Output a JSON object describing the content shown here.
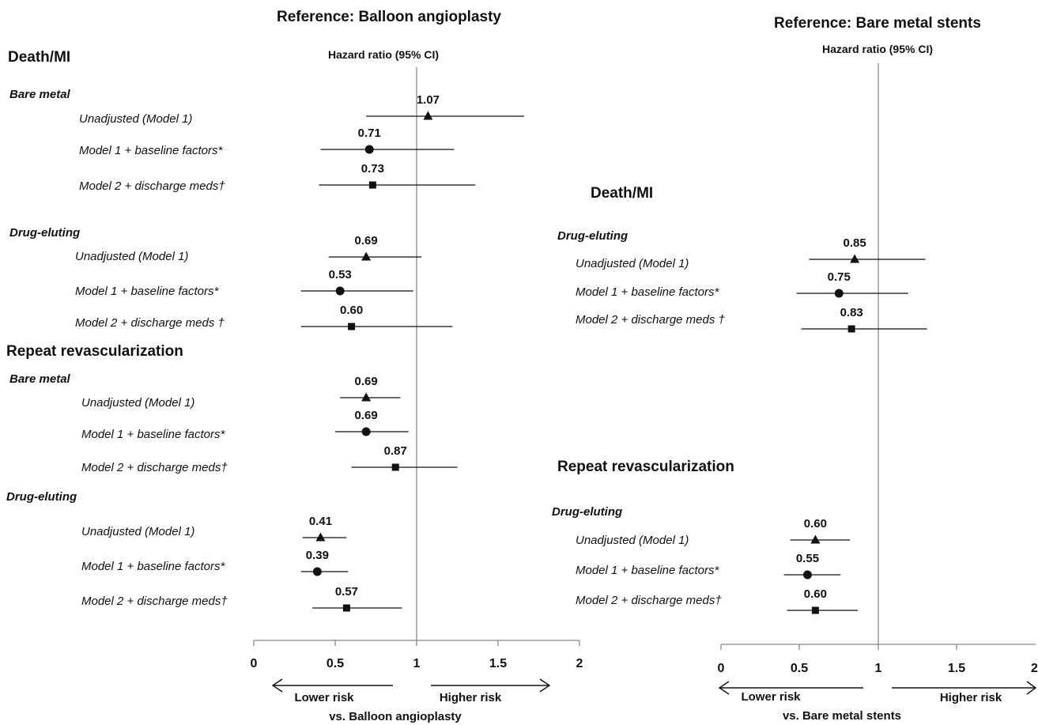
{
  "chart_data": [
    {
      "type": "forest",
      "title": "Reference: Balloon angioplasty",
      "column_header": "Hazard ratio (95% CI)",
      "xlim": [
        0,
        2
      ],
      "xticks": [
        "0",
        "0.5",
        "1",
        "1.5",
        "2"
      ],
      "reference_line": 1,
      "lower_label": "Lower risk",
      "higher_label": "Higher risk",
      "xlabel": "vs. Balloon angioplasty",
      "sections": [
        {
          "heading": "Death/MI",
          "groups": [
            {
              "label": "Bare metal",
              "rows": [
                {
                  "label": "Unadjusted (Model 1)",
                  "marker": "triangle",
                  "hr": 1.07,
                  "hr_label": "1.07",
                  "ci": [
                    0.69,
                    1.66
                  ]
                },
                {
                  "label": "Model 1 + baseline factors*",
                  "marker": "circle",
                  "hr": 0.71,
                  "hr_label": "0.71",
                  "ci": [
                    0.41,
                    1.23
                  ]
                },
                {
                  "label": "Model 2 + discharge meds†",
                  "marker": "square",
                  "hr": 0.73,
                  "hr_label": "0.73",
                  "ci": [
                    0.4,
                    1.36
                  ]
                }
              ]
            },
            {
              "label": "Drug-eluting",
              "rows": [
                {
                  "label": "Unadjusted (Model 1)",
                  "marker": "triangle",
                  "hr": 0.69,
                  "hr_label": "0.69",
                  "ci": [
                    0.46,
                    1.03
                  ]
                },
                {
                  "label": "Model 1 + baseline factors*",
                  "marker": "circle",
                  "hr": 0.53,
                  "hr_label": "0.53",
                  "ci": [
                    0.29,
                    0.98
                  ]
                },
                {
                  "label": "Model 2 + discharge meds †",
                  "marker": "square",
                  "hr": 0.6,
                  "hr_label": "0.60",
                  "ci": [
                    0.29,
                    1.22
                  ]
                }
              ]
            }
          ]
        },
        {
          "heading": "Repeat revascularization",
          "groups": [
            {
              "label": "Bare metal",
              "rows": [
                {
                  "label": "Unadjusted (Model 1)",
                  "marker": "triangle",
                  "hr": 0.69,
                  "hr_label": "0.69",
                  "ci": [
                    0.53,
                    0.9
                  ]
                },
                {
                  "label": "Model 1 + baseline factors*",
                  "marker": "circle",
                  "hr": 0.69,
                  "hr_label": "0.69",
                  "ci": [
                    0.5,
                    0.95
                  ]
                },
                {
                  "label": "Model 2 + discharge meds†",
                  "marker": "square",
                  "hr": 0.87,
                  "hr_label": "0.87",
                  "ci": [
                    0.6,
                    1.25
                  ]
                }
              ]
            },
            {
              "label": "Drug-eluting",
              "rows": [
                {
                  "label": "Unadjusted (Model 1)",
                  "marker": "triangle",
                  "hr": 0.41,
                  "hr_label": "0.41",
                  "ci": [
                    0.3,
                    0.57
                  ]
                },
                {
                  "label": "Model 1 + baseline factors*",
                  "marker": "circle",
                  "hr": 0.39,
                  "hr_label": "0.39",
                  "ci": [
                    0.29,
                    0.58
                  ]
                },
                {
                  "label": "Model 2 + discharge meds†",
                  "marker": "square",
                  "hr": 0.57,
                  "hr_label": "0.57",
                  "ci": [
                    0.36,
                    0.91
                  ]
                }
              ]
            }
          ]
        }
      ]
    },
    {
      "type": "forest",
      "title": "Reference: Bare metal stents",
      "column_header": "Hazard ratio (95% CI)",
      "xlim": [
        0,
        2
      ],
      "xticks": [
        "0",
        "0.5",
        "1",
        "1.5",
        "2"
      ],
      "reference_line": 1,
      "lower_label": "Lower risk",
      "higher_label": "Higher risk",
      "xlabel": "vs. Bare metal stents",
      "sections": [
        {
          "heading": "Death/MI",
          "groups": [
            {
              "label": "Drug-eluting",
              "rows": [
                {
                  "label": "Unadjusted (Model 1)",
                  "marker": "triangle",
                  "hr": 0.85,
                  "hr_label": "0.85",
                  "ci": [
                    0.56,
                    1.3
                  ]
                },
                {
                  "label": "Model 1 + baseline factors*",
                  "marker": "circle",
                  "hr": 0.75,
                  "hr_label": "0.75",
                  "ci": [
                    0.48,
                    1.19
                  ]
                },
                {
                  "label": "Model 2 + discharge meds †",
                  "marker": "square",
                  "hr": 0.83,
                  "hr_label": "0.83",
                  "ci": [
                    0.51,
                    1.31
                  ]
                }
              ]
            }
          ]
        },
        {
          "heading": "Repeat revascularization",
          "groups": [
            {
              "label": "Drug-eluting",
              "rows": [
                {
                  "label": "Unadjusted (Model 1)",
                  "marker": "triangle",
                  "hr": 0.6,
                  "hr_label": "0.60",
                  "ci": [
                    0.44,
                    0.82
                  ]
                },
                {
                  "label": "Model 1 + baseline factors*",
                  "marker": "circle",
                  "hr": 0.55,
                  "hr_label": "0.55",
                  "ci": [
                    0.4,
                    0.76
                  ]
                },
                {
                  "label": "Model 2 + discharge meds†",
                  "marker": "square",
                  "hr": 0.6,
                  "hr_label": "0.60",
                  "ci": [
                    0.42,
                    0.87
                  ]
                }
              ]
            }
          ]
        }
      ]
    }
  ]
}
